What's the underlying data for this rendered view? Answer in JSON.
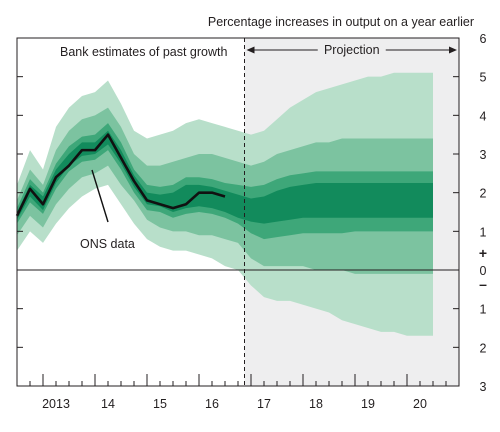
{
  "chart_data": {
    "type": "area",
    "title": "Percentage increases in output on a year earlier",
    "annotations": {
      "past_label": "Bank estimates of past growth",
      "projection_label": "Projection",
      "ons_label": "ONS data"
    },
    "y_ticks_upper": [
      "6",
      "5",
      "4",
      "3",
      "2",
      "1",
      "0"
    ],
    "y_ticks_lower": [
      "1",
      "2",
      "3"
    ],
    "y_sign_plus": "+",
    "y_sign_minus": "–",
    "ylim": [
      -3,
      6
    ],
    "x_tick_labels": [
      "2013",
      "14",
      "15",
      "16",
      "17",
      "18",
      "19",
      "20"
    ],
    "x_tick_positions": [
      2013.25,
      2014.25,
      2015.25,
      2016.25,
      2017.25,
      2018.25,
      2019.25,
      2020.25
    ],
    "xlim": [
      2012.5,
      2021.0
    ],
    "projection_start": 2016.875,
    "colors": {
      "band_outer": "#b8dfca",
      "band_middle": "#7cc3a0",
      "band_inner": "#3ea779",
      "band_core": "#128b5c",
      "ons_line": "#111111",
      "projection_background": "#eeeeef"
    },
    "fan": {
      "x": [
        2012.5,
        2012.75,
        2013.0,
        2013.25,
        2013.5,
        2013.75,
        2014.0,
        2014.25,
        2014.5,
        2014.75,
        2015.0,
        2015.25,
        2015.5,
        2015.75,
        2016.0,
        2016.25,
        2016.5,
        2016.75,
        2017.0,
        2017.25,
        2017.5,
        2017.75,
        2018.0,
        2018.25,
        2018.5,
        2018.75,
        2019.0,
        2019.25,
        2019.5,
        2019.75,
        2020.0,
        2020.25,
        2020.5
      ],
      "outer_upper": [
        2.2,
        3.1,
        2.6,
        3.7,
        4.2,
        4.5,
        4.6,
        4.9,
        4.3,
        3.6,
        3.4,
        3.5,
        3.6,
        3.8,
        3.9,
        3.8,
        3.7,
        3.6,
        3.5,
        3.6,
        3.9,
        4.2,
        4.4,
        4.6,
        4.7,
        4.8,
        4.9,
        5.0,
        5.0,
        5.1,
        5.1,
        5.1,
        5.1
      ],
      "outer_lower": [
        0.5,
        1.0,
        0.7,
        1.2,
        1.6,
        1.9,
        2.1,
        2.2,
        1.7,
        1.2,
        0.8,
        0.6,
        0.5,
        0.5,
        0.4,
        0.3,
        0.1,
        0.0,
        -0.4,
        -0.7,
        -0.8,
        -0.8,
        -0.9,
        -1.0,
        -1.1,
        -1.3,
        -1.4,
        -1.5,
        -1.6,
        -1.6,
        -1.7,
        -1.7,
        -1.7
      ],
      "middle_upper": [
        1.8,
        2.6,
        2.2,
        3.1,
        3.6,
        3.9,
        4.0,
        4.2,
        3.7,
        3.0,
        2.7,
        2.7,
        2.8,
        2.9,
        3.0,
        3.0,
        2.9,
        2.8,
        2.7,
        2.8,
        3.0,
        3.1,
        3.2,
        3.3,
        3.3,
        3.4,
        3.4,
        3.4,
        3.4,
        3.4,
        3.4,
        3.4,
        3.4
      ],
      "middle_lower": [
        0.9,
        1.4,
        1.1,
        1.7,
        2.1,
        2.4,
        2.5,
        2.7,
        2.2,
        1.8,
        1.3,
        1.1,
        1.0,
        1.0,
        0.9,
        0.9,
        0.8,
        0.7,
        0.3,
        0.1,
        0.1,
        0.1,
        0.1,
        0.0,
        0.0,
        0.0,
        -0.1,
        -0.1,
        -0.1,
        -0.1,
        -0.1,
        -0.1,
        -0.1
      ],
      "inner_upper": [
        1.6,
        2.35,
        2.0,
        2.75,
        3.2,
        3.45,
        3.5,
        3.8,
        3.3,
        2.6,
        2.2,
        2.15,
        2.2,
        2.4,
        2.4,
        2.35,
        2.25,
        2.2,
        2.15,
        2.2,
        2.35,
        2.45,
        2.5,
        2.55,
        2.55,
        2.55,
        2.55,
        2.55,
        2.55,
        2.55,
        2.55,
        2.55,
        2.55
      ],
      "inner_lower": [
        1.2,
        1.75,
        1.45,
        2.1,
        2.55,
        2.8,
        2.85,
        3.1,
        2.6,
        2.0,
        1.55,
        1.5,
        1.35,
        1.45,
        1.5,
        1.45,
        1.35,
        1.2,
        0.95,
        0.8,
        0.85,
        0.9,
        0.95,
        0.95,
        0.95,
        0.95,
        1.0,
        1.0,
        1.0,
        1.0,
        1.0,
        1.0,
        1.0
      ],
      "core_upper": [
        1.5,
        2.2,
        1.9,
        2.6,
        3.0,
        3.3,
        3.3,
        3.6,
        3.1,
        2.45,
        2.0,
        1.95,
        2.0,
        2.2,
        2.2,
        2.15,
        2.05,
        1.95,
        1.85,
        1.9,
        2.05,
        2.15,
        2.2,
        2.25,
        2.25,
        2.25,
        2.25,
        2.25,
        2.25,
        2.25,
        2.25,
        2.25,
        2.25
      ],
      "core_lower": [
        1.3,
        1.9,
        1.55,
        2.25,
        2.7,
        2.95,
        3.0,
        3.25,
        2.75,
        2.15,
        1.7,
        1.65,
        1.5,
        1.6,
        1.65,
        1.6,
        1.5,
        1.35,
        1.25,
        1.2,
        1.25,
        1.3,
        1.35,
        1.35,
        1.35,
        1.35,
        1.35,
        1.35,
        1.35,
        1.35,
        1.35,
        1.35,
        1.35
      ]
    },
    "series": [
      {
        "name": "ONS data",
        "x": [
          2012.5,
          2012.75,
          2013.0,
          2013.25,
          2013.5,
          2013.75,
          2014.0,
          2014.25,
          2014.5,
          2014.75,
          2015.0,
          2015.25,
          2015.5,
          2015.75,
          2016.0,
          2016.25,
          2016.5
        ],
        "values": [
          1.4,
          2.1,
          1.7,
          2.4,
          2.7,
          3.1,
          3.1,
          3.5,
          2.9,
          2.3,
          1.8,
          1.7,
          1.6,
          1.7,
          2.0,
          2.0,
          1.9
        ]
      }
    ]
  }
}
